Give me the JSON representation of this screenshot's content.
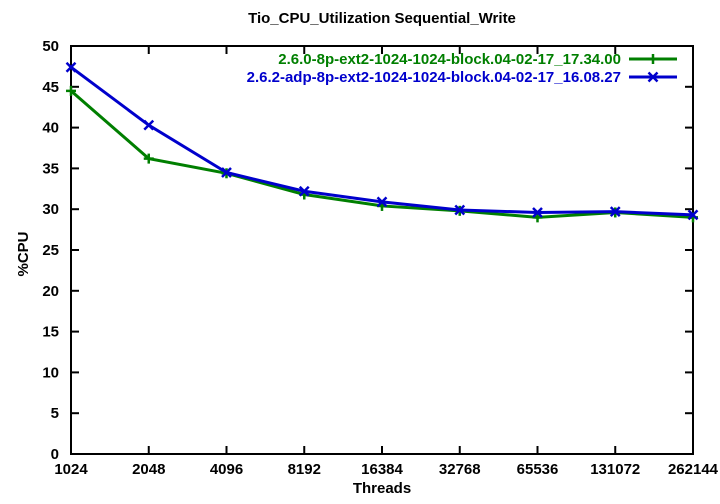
{
  "chart_data": {
    "type": "line",
    "title": "Tio_CPU_Utilization Sequential_Write",
    "xlabel": "Threads",
    "ylabel": "%CPU",
    "x_categories": [
      "1024",
      "2048",
      "4096",
      "8192",
      "16384",
      "32768",
      "65536",
      "131072",
      "262144"
    ],
    "x_scale": "log2-equal-spacing",
    "ylim": [
      0,
      50
    ],
    "ytick_step": 5,
    "grid": false,
    "legend_position": "top-right-inside",
    "background_color": "#ffffff",
    "axis_color": "#000000",
    "series": [
      {
        "name": "2.6.0-8p-ext2-1024-1024-block.04-02-17_17.34.00",
        "color": "#007f00",
        "marker": "plus",
        "values": [
          44.5,
          36.2,
          34.4,
          31.8,
          30.4,
          29.8,
          29.0,
          29.6,
          29.0
        ]
      },
      {
        "name": "2.6.2-adp-8p-ext2-1024-1024-block.04-02-17_16.08.27",
        "color": "#0000cc",
        "marker": "x",
        "values": [
          47.4,
          40.3,
          34.5,
          32.2,
          30.9,
          29.9,
          29.6,
          29.7,
          29.3
        ]
      }
    ]
  }
}
